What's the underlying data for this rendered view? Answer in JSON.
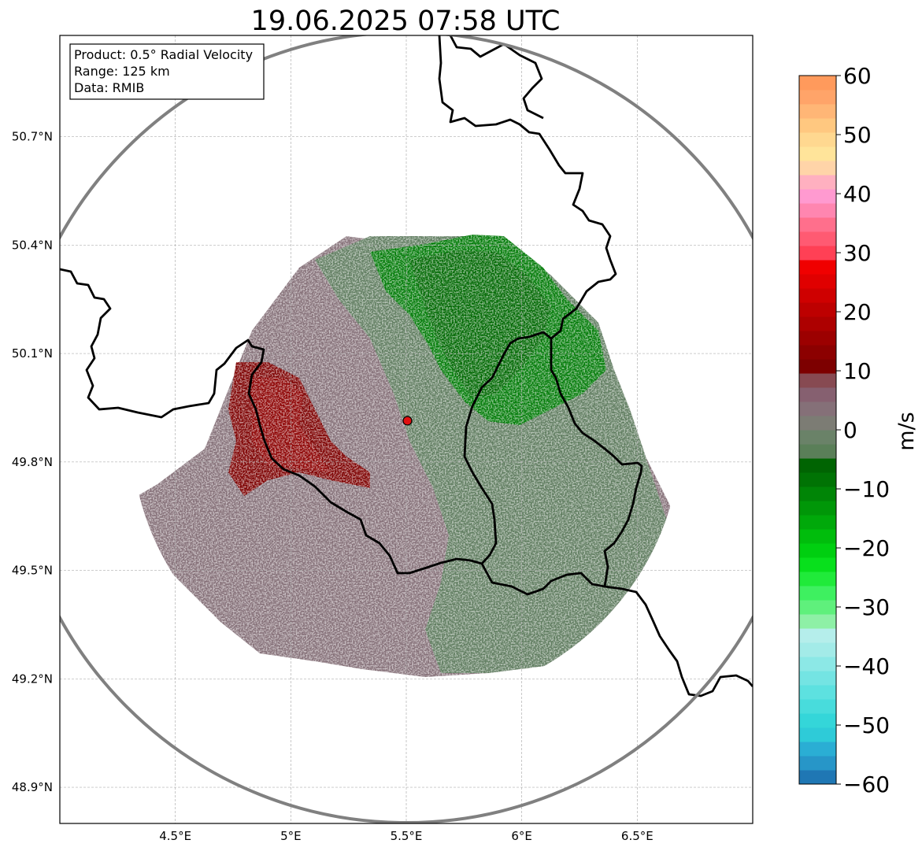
{
  "title": "19.06.2025 07:58 UTC",
  "info_box": {
    "product": "Product: 0.5° Radial Velocity",
    "range": "Range: 125 km",
    "data": "Data: RMIB"
  },
  "map": {
    "lon_range": [
      4.0,
      7.0
    ],
    "lat_range": [
      48.8,
      50.98
    ],
    "x_ticks": [
      {
        "value": 4.5,
        "label": "4.5°E"
      },
      {
        "value": 5.0,
        "label": "5°E"
      },
      {
        "value": 5.5,
        "label": "5.5°E"
      },
      {
        "value": 6.0,
        "label": "6°E"
      },
      {
        "value": 6.5,
        "label": "6.5°E"
      }
    ],
    "y_ticks": [
      {
        "value": 48.9,
        "label": "48.9°N"
      },
      {
        "value": 49.2,
        "label": "49.2°N"
      },
      {
        "value": 49.5,
        "label": "49.5°N"
      },
      {
        "value": 49.8,
        "label": "49.8°N"
      },
      {
        "value": 50.1,
        "label": "50.1°N"
      },
      {
        "value": 50.4,
        "label": "50.4°N"
      },
      {
        "value": 50.7,
        "label": "50.7°N"
      }
    ],
    "radar_site": {
      "lon": 5.505,
      "lat": 49.914
    },
    "range_ring_km": 125,
    "grid": true
  },
  "colorbar": {
    "label": "m/s",
    "min": -60,
    "max": 60,
    "ticks": [
      {
        "value": 60,
        "label": "60"
      },
      {
        "value": 50,
        "label": "50"
      },
      {
        "value": 40,
        "label": "40"
      },
      {
        "value": 30,
        "label": "30"
      },
      {
        "value": 20,
        "label": "20"
      },
      {
        "value": 10,
        "label": "10"
      },
      {
        "value": 0,
        "label": "0"
      },
      {
        "value": -10,
        "label": "−10"
      },
      {
        "value": -20,
        "label": "−20"
      },
      {
        "value": -30,
        "label": "−30"
      },
      {
        "value": -40,
        "label": "−40"
      },
      {
        "value": -50,
        "label": "−50"
      },
      {
        "value": -60,
        "label": "−60"
      }
    ],
    "colors_bottom_to_top": [
      "#1f77b4",
      "#2796c8",
      "#2aaed4",
      "#2ecbd8",
      "#34d6d9",
      "#48dcdc",
      "#5de1e0",
      "#74e4e3",
      "#8ce8e6",
      "#a3ebe8",
      "#b5eeeb",
      "#8ef0a6",
      "#5ff07c",
      "#3ef060",
      "#20ea3a",
      "#08e01c",
      "#00cf10",
      "#00bd0c",
      "#00a90a",
      "#009708",
      "#008506",
      "#007304",
      "#006402",
      "#5a7f58",
      "#6a8268",
      "#7c7c74",
      "#857078",
      "#866070",
      "#874a52",
      "#7d0000",
      "#8c0000",
      "#9c0000",
      "#ad0000",
      "#bd0000",
      "#cf0000",
      "#e00000",
      "#f00000",
      "#ff4055",
      "#ff5a72",
      "#ff6f8c",
      "#ff86b0",
      "#ff9ad0",
      "#ffb0c0",
      "#ffd4a8",
      "#ffe49a",
      "#ffd890",
      "#ffc880",
      "#ffb676",
      "#ffa469",
      "#ff9a5c"
    ]
  },
  "colors": {
    "frame": "#000000",
    "grid": "#b0b0b0",
    "range_ring": "#808080",
    "border": "#000000",
    "site_marker": "#e01010"
  }
}
